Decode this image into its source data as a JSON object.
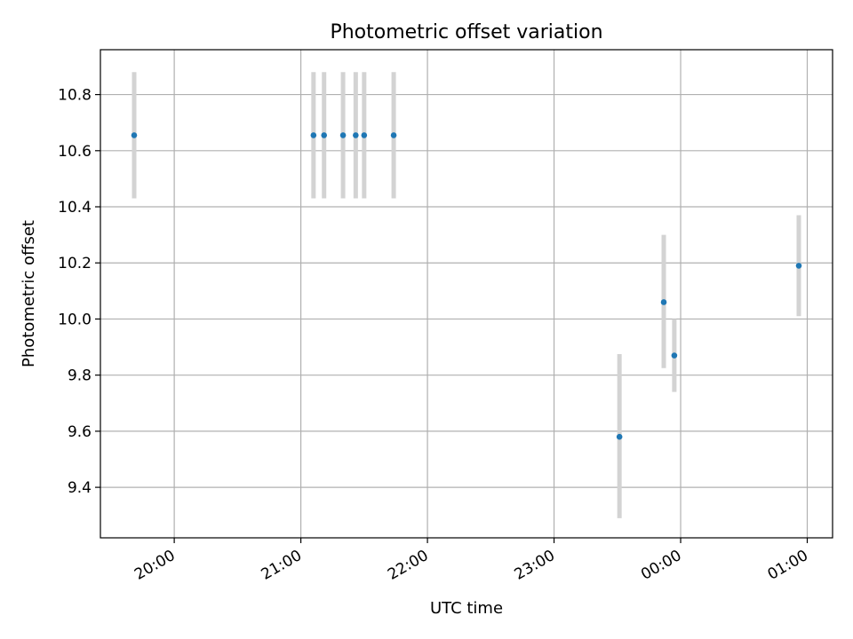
{
  "chart_data": {
    "type": "scatter",
    "title": "Photometric offset variation",
    "xlabel": "UTC time",
    "ylabel": "Photometric offset",
    "x_type": "time",
    "xlim": [
      "2000-01-01T19:25:00",
      "2000-01-02T01:12:00"
    ],
    "ylim": [
      9.22,
      10.96
    ],
    "x_ticks": [
      {
        "value": "2000-01-01T20:00:00",
        "label": "20:00"
      },
      {
        "value": "2000-01-01T21:00:00",
        "label": "21:00"
      },
      {
        "value": "2000-01-01T22:00:00",
        "label": "22:00"
      },
      {
        "value": "2000-01-01T23:00:00",
        "label": "23:00"
      },
      {
        "value": "2000-01-02T00:00:00",
        "label": "00:00"
      },
      {
        "value": "2000-01-02T01:00:00",
        "label": "01:00"
      }
    ],
    "y_ticks": [
      9.4,
      9.6,
      9.8,
      10.0,
      10.2,
      10.4,
      10.6,
      10.8
    ],
    "y_tick_labels": [
      "9.4",
      "9.6",
      "9.8",
      "10.0",
      "10.2",
      "10.4",
      "10.6",
      "10.8"
    ],
    "grid": true,
    "marker_color": "#1f77b4",
    "errorbar_color": "#d3d3d3",
    "points": [
      {
        "x": "2000-01-01T19:41:00",
        "y": 10.655,
        "y_err_low": 10.43,
        "y_err_high": 10.88
      },
      {
        "x": "2000-01-01T21:06:00",
        "y": 10.655,
        "y_err_low": 10.43,
        "y_err_high": 10.88
      },
      {
        "x": "2000-01-01T21:11:00",
        "y": 10.655,
        "y_err_low": 10.43,
        "y_err_high": 10.88
      },
      {
        "x": "2000-01-01T21:20:00",
        "y": 10.655,
        "y_err_low": 10.43,
        "y_err_high": 10.88
      },
      {
        "x": "2000-01-01T21:26:00",
        "y": 10.655,
        "y_err_low": 10.43,
        "y_err_high": 10.88
      },
      {
        "x": "2000-01-01T21:30:00",
        "y": 10.655,
        "y_err_low": 10.43,
        "y_err_high": 10.88
      },
      {
        "x": "2000-01-01T21:44:00",
        "y": 10.655,
        "y_err_low": 10.43,
        "y_err_high": 10.88
      },
      {
        "x": "2000-01-01T23:31:00",
        "y": 9.58,
        "y_err_low": 9.29,
        "y_err_high": 9.875
      },
      {
        "x": "2000-01-01T23:52:00",
        "y": 10.06,
        "y_err_low": 9.825,
        "y_err_high": 10.3
      },
      {
        "x": "2000-01-01T23:57:00",
        "y": 9.87,
        "y_err_low": 9.74,
        "y_err_high": 10.0
      },
      {
        "x": "2000-01-02T00:56:00",
        "y": 10.19,
        "y_err_low": 10.01,
        "y_err_high": 10.37
      }
    ]
  }
}
